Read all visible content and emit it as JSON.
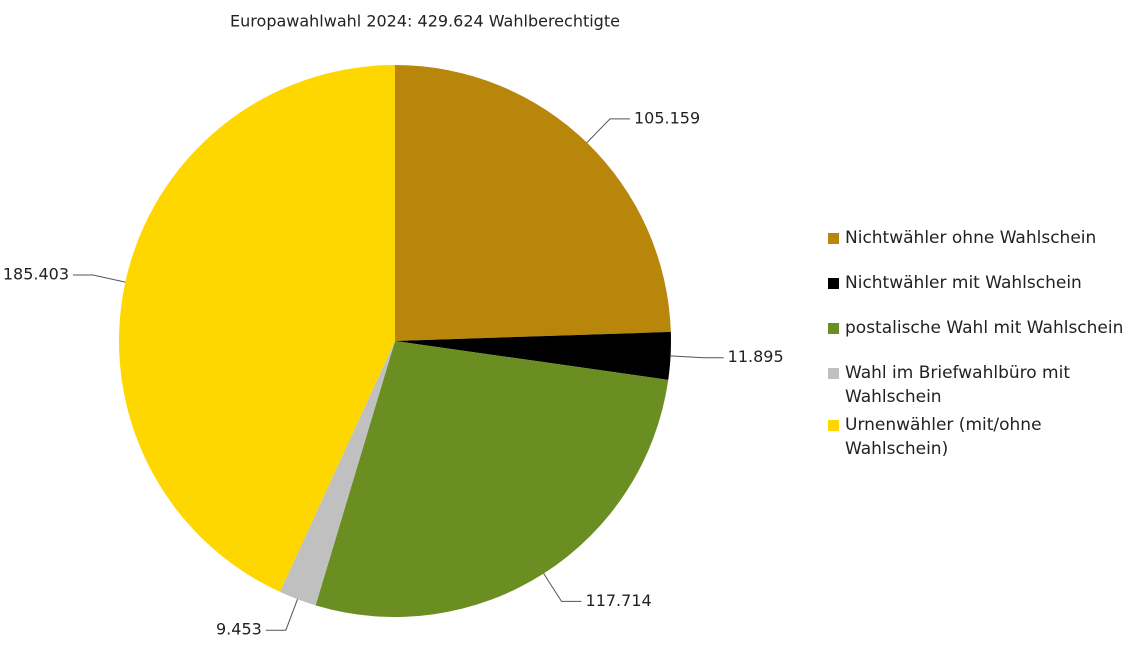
{
  "chart_data": {
    "type": "pie",
    "title": "Europawahlwahl 2024:  429.624 Wahlberechtigte",
    "categories": [
      "Nichtwähler ohne Wahlschein",
      "Nichtwähler mit Wahlschein",
      "postalische Wahl mit Wahlschein",
      "Wahl im Briefwahlbüro mit Wahlschein",
      "Urnenwähler (mit/ohne Wahlschein)"
    ],
    "values": [
      105159,
      11895,
      117714,
      9453,
      185403
    ],
    "value_labels": [
      "105.159",
      "11.895",
      "117.714",
      "9.453",
      "185.403"
    ],
    "colors": [
      "#b8860b",
      "#000000",
      "#6b8e23",
      "#c0c0c0",
      "#ffd700"
    ],
    "legend": "right"
  }
}
